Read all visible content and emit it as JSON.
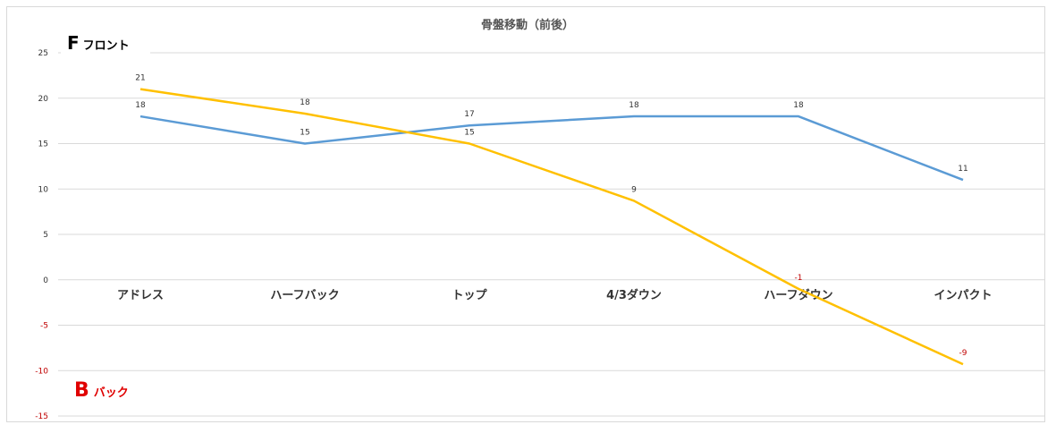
{
  "chart_data": {
    "type": "line",
    "title": "骨盤移動（前後）",
    "categories": [
      "アドレス",
      "ハーフバック",
      "トップ",
      "4/3ダウン",
      "ハーフダウン",
      "インパクト"
    ],
    "series": [
      {
        "values": [
          18,
          15,
          17,
          18,
          18,
          11
        ],
        "color": "#5b9bd5"
      },
      {
        "values": [
          21,
          18.3,
          15,
          8.7,
          -1,
          -9.3
        ],
        "labels": [
          "21",
          "18",
          "15",
          "9",
          "-1",
          "-9"
        ],
        "color": "#ffc000"
      }
    ],
    "ylim": [
      -15,
      25
    ],
    "yticks": [
      25,
      20,
      15,
      10,
      5,
      0,
      -5,
      -10,
      -15
    ],
    "grid": true,
    "negative_label_color": "#c00000"
  },
  "annotations": {
    "front": {
      "letter": "F",
      "text": "フロント",
      "color": "#000000"
    },
    "back": {
      "letter": "B",
      "text": "バック",
      "color": "#e00000"
    }
  }
}
